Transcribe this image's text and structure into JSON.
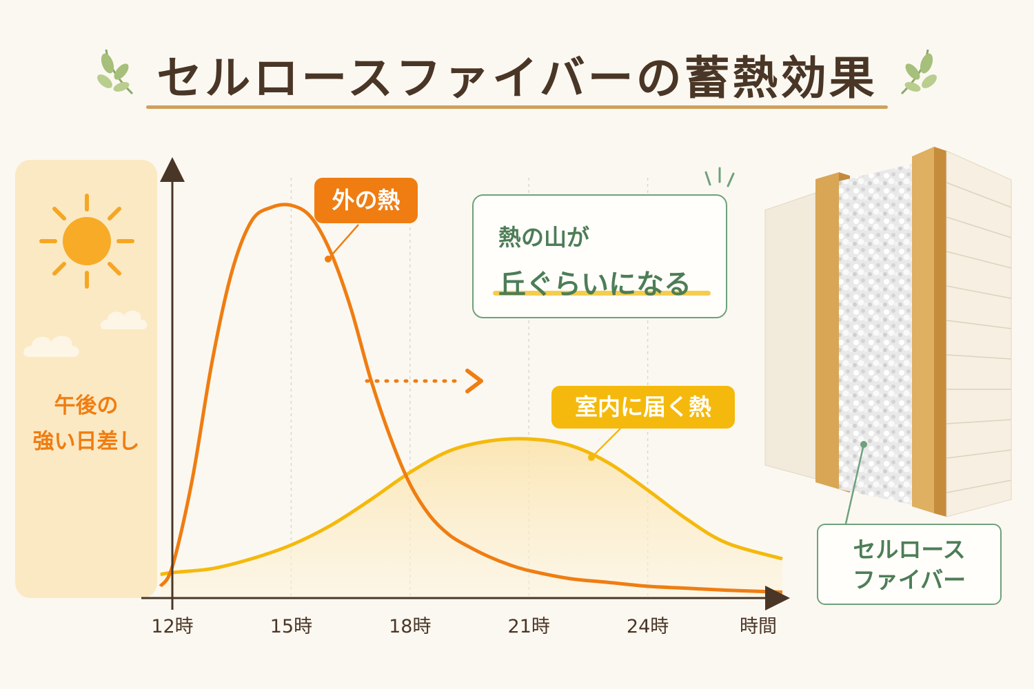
{
  "header": {
    "title": "セルロースファイバーの蓄熱効果"
  },
  "sun_panel": {
    "line1": "午後の",
    "line2": "強い日差し"
  },
  "callouts": {
    "outer": "外の熱",
    "indoor": "室内に届く熱"
  },
  "note": {
    "line1": "熱の山が",
    "line2": "丘ぐらいになる"
  },
  "material_label": {
    "line1": "セルロース",
    "line2": "ファイバー"
  },
  "colors": {
    "outer_heat": "#ef7d12",
    "indoor_heat": "#f4b90c",
    "accent_green": "#6ea17b",
    "title_brown": "#4a3626"
  },
  "icons": [
    "leaf-icon",
    "sun-icon",
    "cloud-icon",
    "arrow-icon",
    "sparkle-icon"
  ],
  "chart_data": {
    "type": "line",
    "title": "",
    "xlabel": "時間",
    "ylabel": "",
    "x_ticks": [
      "12時",
      "15時",
      "18時",
      "21時",
      "24時"
    ],
    "x_tick_values": [
      12,
      15,
      18,
      21,
      24
    ],
    "xlim": [
      12,
      27.4
    ],
    "ylim": [
      0,
      100
    ],
    "grid": {
      "vertical": true,
      "horizontal": false
    },
    "series": [
      {
        "name": "外の熱",
        "x": [
          11.7,
          12,
          12.5,
          13,
          13.5,
          14,
          14.5,
          15,
          15.5,
          16,
          16.5,
          17,
          17.5,
          18,
          18.5,
          19,
          19.5,
          20,
          20.5,
          21,
          22,
          23,
          24,
          25,
          26,
          27.4
        ],
        "y": [
          3,
          8,
          30,
          60,
          83,
          96,
          99.5,
          100,
          97,
          88,
          74,
          56,
          41,
          29,
          21,
          16,
          13,
          10.5,
          8.5,
          7,
          5,
          4,
          3,
          2.5,
          2,
          1.5
        ]
      },
      {
        "name": "室内に届く熱",
        "x": [
          11.7,
          12,
          13,
          14,
          15,
          16,
          17,
          18,
          19,
          20,
          21,
          22,
          23,
          24,
          25,
          26,
          27.4
        ],
        "y": [
          6,
          6.5,
          7.5,
          10,
          13.5,
          18.5,
          25,
          32,
          37.5,
          40,
          40.5,
          39,
          34.5,
          27.5,
          20,
          14,
          10
        ]
      }
    ]
  }
}
